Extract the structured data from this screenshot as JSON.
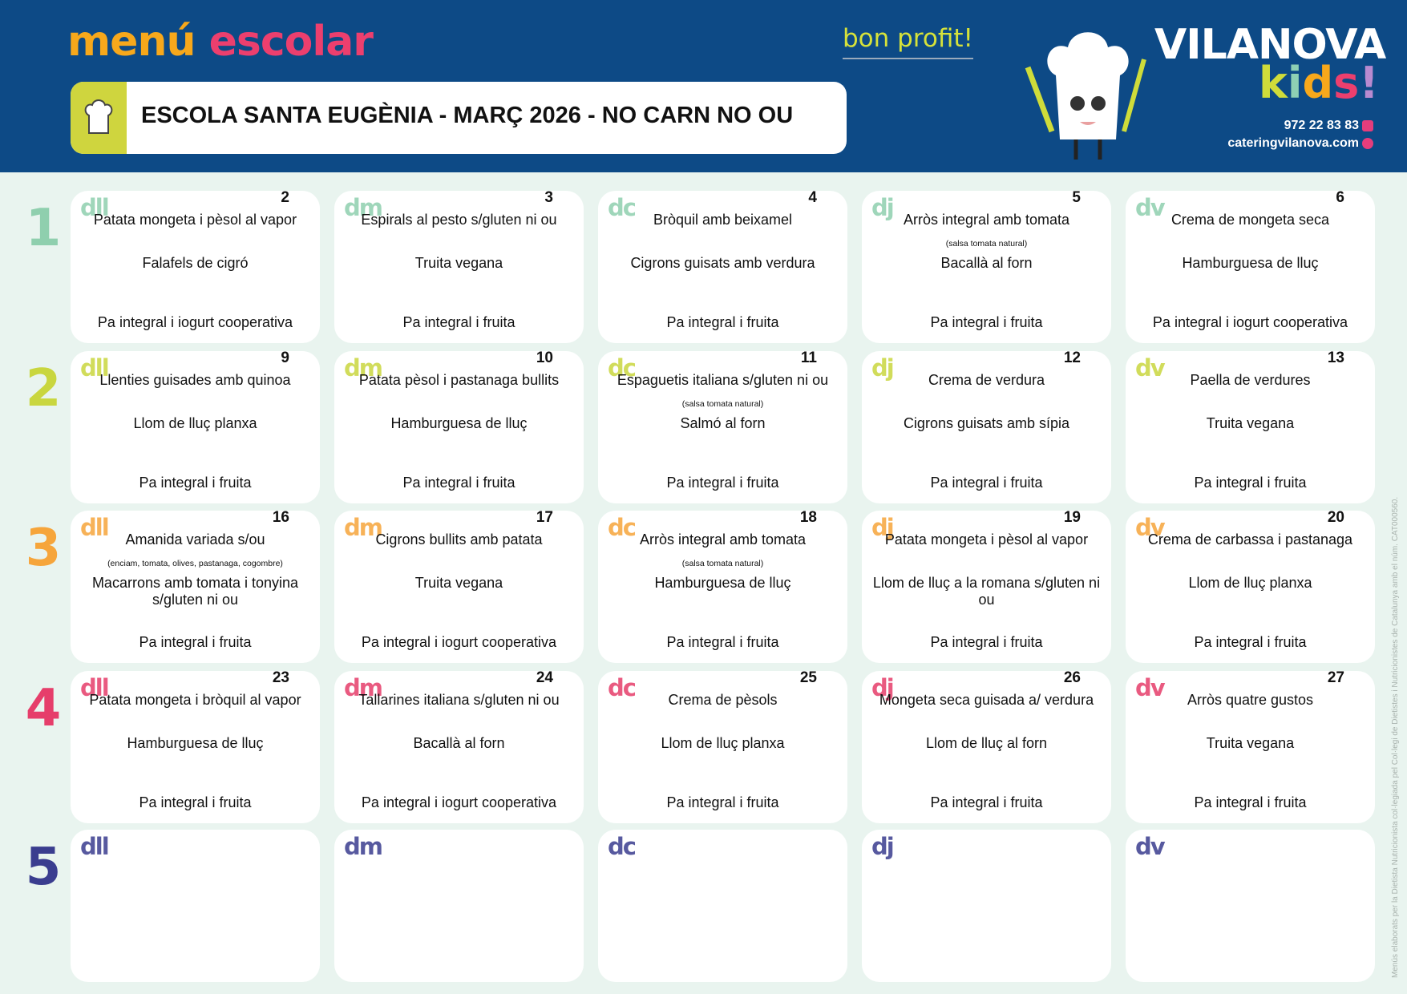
{
  "header": {
    "title_part1": "menú",
    "title_part2": "escolar",
    "school_title": "ESCOLA SANTA EUGÈNIA - MARÇ 2026 - NO CARN NO OU",
    "slogan": "bon profit!",
    "brand": "VILANOVA",
    "brand_sub": "kids!",
    "phone": "972 22 83 83",
    "website": "cateringvilanova.com",
    "colors": {
      "background": "#0d4a86",
      "menu": "#f7a81b",
      "escolar": "#ec3f6e"
    }
  },
  "day_abbrs": [
    "dll",
    "dm",
    "dc",
    "dj",
    "dv"
  ],
  "weeks": [
    {
      "label": "1",
      "color": "#8fcfae",
      "days": [
        {
          "num": "2",
          "first": "Patata mongeta i pèsol al vapor",
          "note": "",
          "second": "Falafels de cigró",
          "dessert": "Pa integral i iogurt cooperativa"
        },
        {
          "num": "3",
          "first": "Espirals al pesto s/gluten ni ou",
          "note": "",
          "second": "Truita vegana",
          "dessert": "Pa integral i fruita"
        },
        {
          "num": "4",
          "first": "Bròquil amb beixamel",
          "note": "",
          "second": "Cigrons guisats amb verdura",
          "dessert": "Pa integral i fruita"
        },
        {
          "num": "5",
          "first": "Arròs integral amb tomata",
          "note": "(salsa tomata natural)",
          "second": "Bacallà al forn",
          "dessert": "Pa integral i fruita"
        },
        {
          "num": "6",
          "first": "Crema de mongeta seca",
          "note": "",
          "second": "Hamburguesa de lluç",
          "dessert": "Pa integral i iogurt cooperativa"
        }
      ]
    },
    {
      "label": "2",
      "color": "#c9d63f",
      "days": [
        {
          "num": "9",
          "first": "Llenties guisades amb quinoa",
          "note": "",
          "second": "Llom de lluç planxa",
          "dessert": "Pa integral i fruita"
        },
        {
          "num": "10",
          "first": "Patata pèsol i pastanaga bullits",
          "note": "",
          "second": "Hamburguesa de lluç",
          "dessert": "Pa integral i fruita"
        },
        {
          "num": "11",
          "first": "Espaguetis italiana s/gluten ni ou",
          "note": "(salsa tomata natural)",
          "second": "Salmó al forn",
          "dessert": "Pa integral i fruita"
        },
        {
          "num": "12",
          "first": "Crema de verdura",
          "note": "",
          "second": "Cigrons guisats amb sípia",
          "dessert": "Pa integral i fruita"
        },
        {
          "num": "13",
          "first": "Paella de verdures",
          "note": "",
          "second": "Truita vegana",
          "dessert": "Pa integral i fruita"
        }
      ]
    },
    {
      "label": "3",
      "color": "#f6a53b",
      "days": [
        {
          "num": "16",
          "first": "Amanida variada s/ou",
          "note": "(enciam, tomata, olives, pastanaga, cogombre)",
          "second": "Macarrons amb tomata i tonyina s/gluten ni ou",
          "dessert": "Pa integral i fruita"
        },
        {
          "num": "17",
          "first": "Cigrons bullits amb patata",
          "note": "",
          "second": "Truita vegana",
          "dessert": "Pa integral i iogurt cooperativa"
        },
        {
          "num": "18",
          "first": "Arròs integral amb tomata",
          "note": "(salsa tomata natural)",
          "second": "Hamburguesa de lluç",
          "dessert": "Pa integral i fruita"
        },
        {
          "num": "19",
          "first": "Patata mongeta i pèsol al vapor",
          "note": "",
          "second": "Llom de lluç a la romana s/gluten ni ou",
          "dessert": "Pa integral i fruita"
        },
        {
          "num": "20",
          "first": "Crema de carbassa i pastanaga",
          "note": "",
          "second": "Llom de lluç planxa",
          "dessert": "Pa integral i fruita"
        }
      ]
    },
    {
      "label": "4",
      "color": "#e63e6b",
      "days": [
        {
          "num": "23",
          "first": "Patata mongeta i bròquil al vapor",
          "note": "",
          "second": "Hamburguesa de lluç",
          "dessert": "Pa integral i fruita"
        },
        {
          "num": "24",
          "first": "Tallarines italiana s/gluten ni ou",
          "note": "",
          "second": "Bacallà al forn",
          "dessert": "Pa integral i iogurt cooperativa"
        },
        {
          "num": "25",
          "first": "Crema de pèsols",
          "note": "",
          "second": "Llom de lluç planxa",
          "dessert": "Pa integral i fruita"
        },
        {
          "num": "26",
          "first": "Mongeta seca guisada a/ verdura",
          "note": "",
          "second": "Llom de lluç al forn",
          "dessert": "Pa integral i fruita"
        },
        {
          "num": "27",
          "first": "Arròs quatre gustos",
          "note": "",
          "second": "Truita vegana",
          "dessert": "Pa integral i fruita"
        }
      ]
    },
    {
      "label": "5",
      "color": "#3a3d8f",
      "days": [
        {
          "num": "",
          "first": "",
          "note": "",
          "second": "",
          "dessert": ""
        },
        {
          "num": "",
          "first": "",
          "note": "",
          "second": "",
          "dessert": ""
        },
        {
          "num": "",
          "first": "",
          "note": "",
          "second": "",
          "dessert": ""
        },
        {
          "num": "",
          "first": "",
          "note": "",
          "second": "",
          "dessert": ""
        },
        {
          "num": "",
          "first": "",
          "note": "",
          "second": "",
          "dessert": ""
        }
      ]
    }
  ],
  "side_note": "Menús elaborats per la Dietista Nutricionista col·legiada pel Col·legi de Dietistes i Nutricionistes de Catalunya amb el núm. CAT000560."
}
